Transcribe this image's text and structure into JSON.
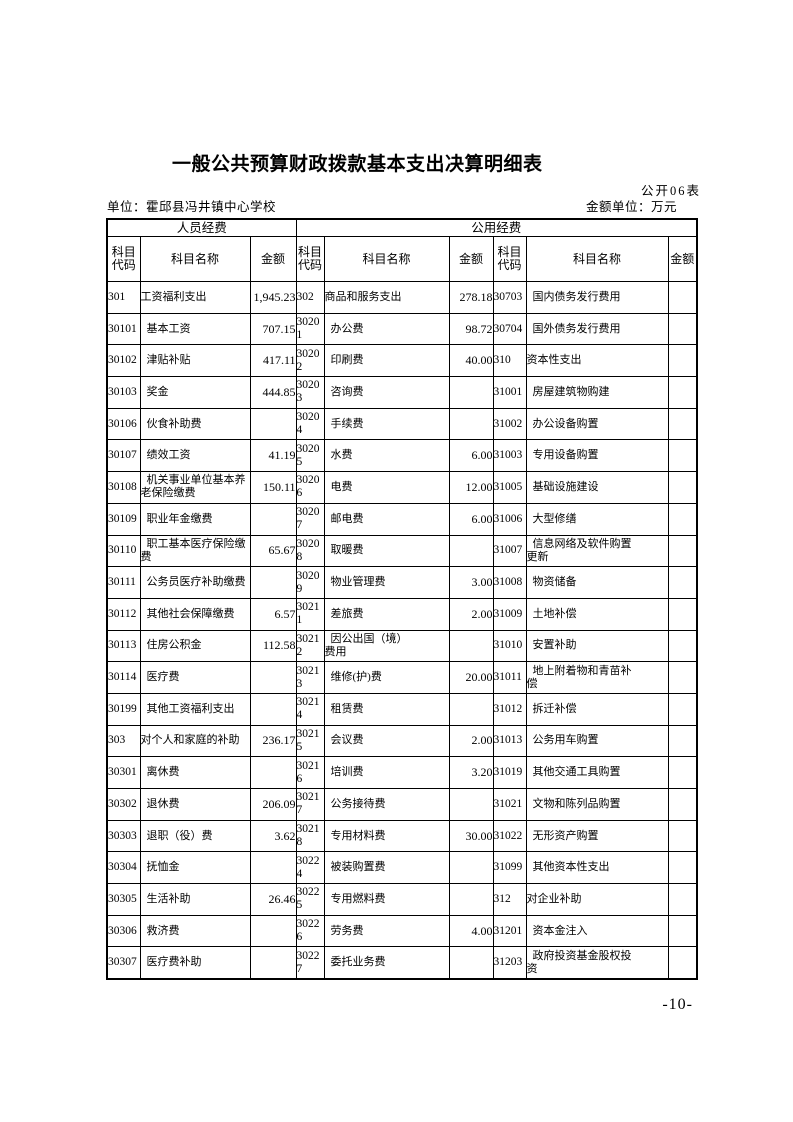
{
  "page": {
    "title": "一般公共预算财政拨款基本支出决算明细表",
    "form_label": "公开06表",
    "unit_label": "单位：霍邱县冯井镇中心学校",
    "amount_unit_label": "金额单位：万元",
    "page_number": "-10-"
  },
  "table": {
    "group_headers": [
      "人员经费",
      "公用经费"
    ],
    "column_headers": [
      "科目代码",
      "科目名称",
      "金额",
      "科目代码",
      "科目名称",
      "金额",
      "科目代码",
      "科目名称",
      "金额"
    ],
    "rows": [
      {
        "cells": [
          {
            "code": "301",
            "name": "工资福利支出",
            "amount": "1,945.23",
            "top": true
          },
          {
            "code": "302",
            "name": "商品和服务支出",
            "amount": "278.18",
            "top": true
          },
          {
            "code": "30703",
            "name": "国内债务发行费用",
            "amount": "",
            "top": false
          }
        ]
      },
      {
        "cells": [
          {
            "code": "30101",
            "name": "基本工资",
            "amount": "707.15",
            "top": false
          },
          {
            "code": "3020\n1",
            "name": "办公费",
            "amount": "98.72",
            "top": false
          },
          {
            "code": "30704",
            "name": "国外债务发行费用",
            "amount": "",
            "top": false
          }
        ]
      },
      {
        "cells": [
          {
            "code": "30102",
            "name": "津贴补贴",
            "amount": "417.11",
            "top": false
          },
          {
            "code": "3020\n2",
            "name": "印刷费",
            "amount": "40.00",
            "top": false
          },
          {
            "code": "310",
            "name": "资本性支出",
            "amount": "",
            "top": true
          }
        ]
      },
      {
        "cells": [
          {
            "code": "30103",
            "name": "奖金",
            "amount": "444.85",
            "top": false
          },
          {
            "code": "3020\n3",
            "name": "咨询费",
            "amount": "",
            "top": false
          },
          {
            "code": "31001",
            "name": "房屋建筑物购建",
            "amount": "",
            "top": false
          }
        ]
      },
      {
        "cells": [
          {
            "code": "30106",
            "name": "伙食补助费",
            "amount": "",
            "top": false
          },
          {
            "code": "3020\n4",
            "name": "手续费",
            "amount": "",
            "top": false
          },
          {
            "code": "31002",
            "name": "办公设备购置",
            "amount": "",
            "top": false
          }
        ]
      },
      {
        "cells": [
          {
            "code": "30107",
            "name": "绩效工资",
            "amount": "41.19",
            "top": false
          },
          {
            "code": "3020\n5",
            "name": "水费",
            "amount": "6.00",
            "top": false
          },
          {
            "code": "31003",
            "name": "专用设备购置",
            "amount": "",
            "top": false
          }
        ]
      },
      {
        "cells": [
          {
            "code": "30108",
            "name": "机关事业单位基本养\n老保险缴费",
            "amount": "150.11",
            "top": false
          },
          {
            "code": "3020\n6",
            "name": "电费",
            "amount": "12.00",
            "top": false
          },
          {
            "code": "31005",
            "name": "基础设施建设",
            "amount": "",
            "top": false
          }
        ]
      },
      {
        "cells": [
          {
            "code": "30109",
            "name": "职业年金缴费",
            "amount": "",
            "top": false
          },
          {
            "code": "3020\n7",
            "name": "邮电费",
            "amount": "6.00",
            "top": false
          },
          {
            "code": "31006",
            "name": "大型修缮",
            "amount": "",
            "top": false
          }
        ]
      },
      {
        "cells": [
          {
            "code": "30110",
            "name": "职工基本医疗保险缴\n费",
            "amount": "65.67",
            "top": false
          },
          {
            "code": "3020\n8",
            "name": "取暖费",
            "amount": "",
            "top": false
          },
          {
            "code": "31007",
            "name": "信息网络及软件购置\n更新",
            "amount": "",
            "top": false
          }
        ]
      },
      {
        "cells": [
          {
            "code": "30111",
            "name": "公务员医疗补助缴费",
            "amount": "",
            "top": false
          },
          {
            "code": "3020\n9",
            "name": "物业管理费",
            "amount": "3.00",
            "top": false
          },
          {
            "code": "31008",
            "name": "物资储备",
            "amount": "",
            "top": false
          }
        ]
      },
      {
        "cells": [
          {
            "code": "30112",
            "name": "其他社会保障缴费",
            "amount": "6.57",
            "top": false
          },
          {
            "code": "3021\n1",
            "name": "差旅费",
            "amount": "2.00",
            "top": false
          },
          {
            "code": "31009",
            "name": "土地补偿",
            "amount": "",
            "top": false
          }
        ]
      },
      {
        "cells": [
          {
            "code": "30113",
            "name": "住房公积金",
            "amount": "112.58",
            "top": false
          },
          {
            "code": "3021\n2",
            "name": "因公出国（境）\n费用",
            "amount": "",
            "top": false
          },
          {
            "code": "31010",
            "name": "安置补助",
            "amount": "",
            "top": false
          }
        ]
      },
      {
        "cells": [
          {
            "code": "30114",
            "name": "医疗费",
            "amount": "",
            "top": false
          },
          {
            "code": "3021\n3",
            "name": "维修(护)费",
            "amount": "20.00",
            "top": false
          },
          {
            "code": "31011",
            "name": "地上附着物和青苗补\n偿",
            "amount": "",
            "top": false
          }
        ]
      },
      {
        "cells": [
          {
            "code": "30199",
            "name": "其他工资福利支出",
            "amount": "",
            "top": false
          },
          {
            "code": "3021\n4",
            "name": "租赁费",
            "amount": "",
            "top": false
          },
          {
            "code": "31012",
            "name": "拆迁补偿",
            "amount": "",
            "top": false
          }
        ]
      },
      {
        "cells": [
          {
            "code": "303",
            "name": "对个人和家庭的补助",
            "amount": "236.17",
            "top": true
          },
          {
            "code": "3021\n5",
            "name": "会议费",
            "amount": "2.00",
            "top": false
          },
          {
            "code": "31013",
            "name": "公务用车购置",
            "amount": "",
            "top": false
          }
        ]
      },
      {
        "cells": [
          {
            "code": "30301",
            "name": "离休费",
            "amount": "",
            "top": false
          },
          {
            "code": "3021\n6",
            "name": "培训费",
            "amount": "3.20",
            "top": false
          },
          {
            "code": "31019",
            "name": "其他交通工具购置",
            "amount": "",
            "top": false
          }
        ]
      },
      {
        "cells": [
          {
            "code": "30302",
            "name": "退休费",
            "amount": "206.09",
            "top": false
          },
          {
            "code": "3021\n7",
            "name": "公务接待费",
            "amount": "",
            "top": false
          },
          {
            "code": "31021",
            "name": "文物和陈列品购置",
            "amount": "",
            "top": false
          }
        ]
      },
      {
        "cells": [
          {
            "code": "30303",
            "name": "退职（役）费",
            "amount": "3.62",
            "top": false
          },
          {
            "code": "3021\n8",
            "name": "专用材料费",
            "amount": "30.00",
            "top": false
          },
          {
            "code": "31022",
            "name": "无形资产购置",
            "amount": "",
            "top": false
          }
        ]
      },
      {
        "cells": [
          {
            "code": "30304",
            "name": "抚恤金",
            "amount": "",
            "top": false
          },
          {
            "code": "3022\n4",
            "name": "被装购置费",
            "amount": "",
            "top": false
          },
          {
            "code": "31099",
            "name": "其他资本性支出",
            "amount": "",
            "top": false
          }
        ]
      },
      {
        "cells": [
          {
            "code": "30305",
            "name": "生活补助",
            "amount": "26.46",
            "top": false
          },
          {
            "code": "3022\n5",
            "name": "专用燃料费",
            "amount": "",
            "top": false
          },
          {
            "code": "312",
            "name": "对企业补助",
            "amount": "",
            "top": true
          }
        ]
      },
      {
        "cells": [
          {
            "code": "30306",
            "name": "救济费",
            "amount": "",
            "top": false
          },
          {
            "code": "3022\n6",
            "name": "劳务费",
            "amount": "4.00",
            "top": false
          },
          {
            "code": "31201",
            "name": "资本金注入",
            "amount": "",
            "top": false
          }
        ]
      },
      {
        "cells": [
          {
            "code": "30307",
            "name": "医疗费补助",
            "amount": "",
            "top": false
          },
          {
            "code": "3022\n7",
            "name": "委托业务费",
            "amount": "",
            "top": false
          },
          {
            "code": "31203",
            "name": "政府投资基金股权投\n资",
            "amount": "",
            "top": false
          }
        ]
      }
    ]
  }
}
